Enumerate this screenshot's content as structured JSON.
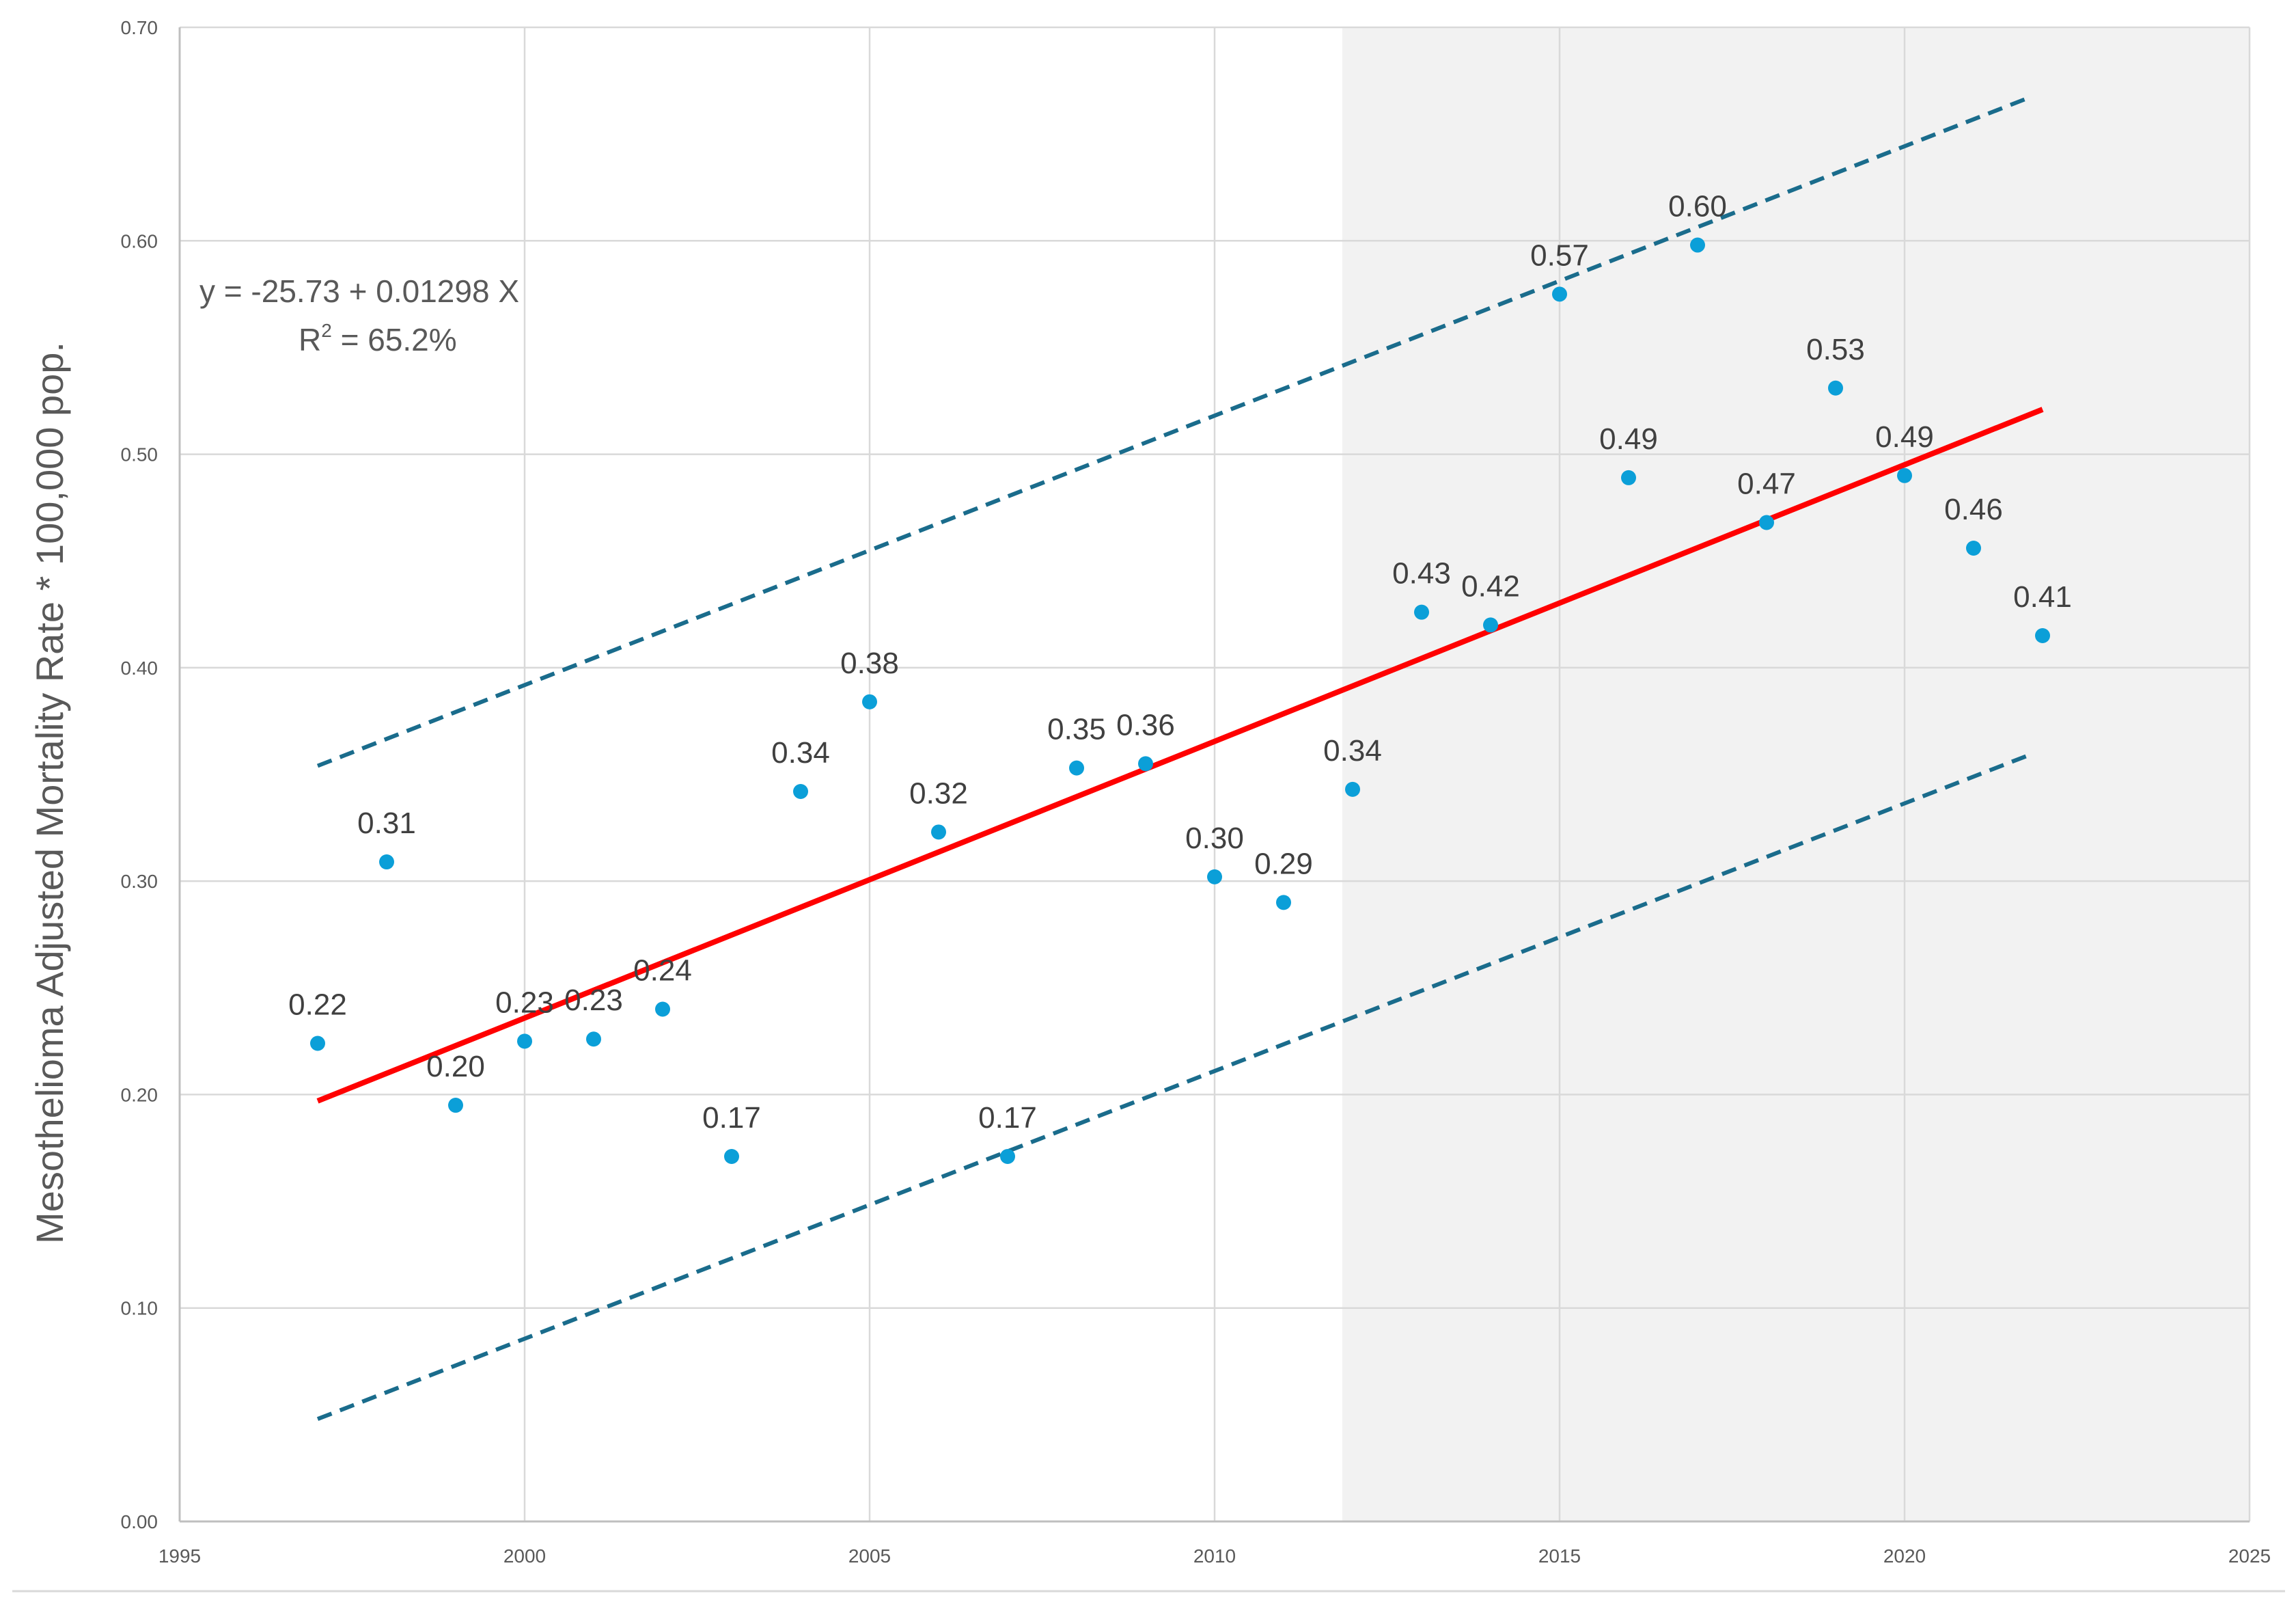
{
  "chart_data": {
    "type": "scatter",
    "title": "",
    "xlabel": "",
    "ylabel": "Mesothelioma Adjusted Mortality Rate * 100,000 pop.",
    "xlim": [
      1995,
      2025
    ],
    "ylim": [
      0.0,
      0.7
    ],
    "x_ticks": [
      "1995",
      "2000",
      "2005",
      "2010",
      "2015",
      "2020",
      "2025"
    ],
    "y_ticks": [
      "0.00",
      "0.10",
      "0.20",
      "0.30",
      "0.40",
      "0.50",
      "0.60",
      "0.70"
    ],
    "grid": true,
    "shaded_region": {
      "x_start": 2011.85,
      "x_end": 2025,
      "color": "#f2f2f2"
    },
    "equation_text": "y = -25.73 + 0.01298 X",
    "r2_text": {
      "prefix": "R",
      "superscript": "2",
      "value": " = 65.2%"
    },
    "series": [
      {
        "name": "Observed",
        "kind": "points",
        "color": "#0b9fd8",
        "points": [
          {
            "x": 1997,
            "y": 0.224,
            "label": "0.22"
          },
          {
            "x": 1998,
            "y": 0.309,
            "label": "0.31"
          },
          {
            "x": 1999,
            "y": 0.195,
            "label": "0.20"
          },
          {
            "x": 2000,
            "y": 0.225,
            "label": "0.23"
          },
          {
            "x": 2001,
            "y": 0.226,
            "label": "0.23"
          },
          {
            "x": 2002,
            "y": 0.24,
            "label": "0.24"
          },
          {
            "x": 2003,
            "y": 0.171,
            "label": "0.17"
          },
          {
            "x": 2004,
            "y": 0.342,
            "label": "0.34"
          },
          {
            "x": 2005,
            "y": 0.384,
            "label": "0.38"
          },
          {
            "x": 2006,
            "y": 0.323,
            "label": "0.32"
          },
          {
            "x": 2007,
            "y": 0.171,
            "label": "0.17"
          },
          {
            "x": 2008,
            "y": 0.353,
            "label": "0.35"
          },
          {
            "x": 2009,
            "y": 0.355,
            "label": "0.36"
          },
          {
            "x": 2010,
            "y": 0.302,
            "label": "0.30"
          },
          {
            "x": 2011,
            "y": 0.29,
            "label": "0.29"
          },
          {
            "x": 2012,
            "y": 0.343,
            "label": "0.34"
          },
          {
            "x": 2013,
            "y": 0.426,
            "label": "0.43"
          },
          {
            "x": 2014,
            "y": 0.42,
            "label": "0.42"
          },
          {
            "x": 2015,
            "y": 0.575,
            "label": "0.57"
          },
          {
            "x": 2016,
            "y": 0.489,
            "label": "0.49"
          },
          {
            "x": 2017,
            "y": 0.598,
            "label": "0.60"
          },
          {
            "x": 2018,
            "y": 0.468,
            "label": "0.47"
          },
          {
            "x": 2019,
            "y": 0.531,
            "label": "0.53"
          },
          {
            "x": 2020,
            "y": 0.49,
            "label": "0.49"
          },
          {
            "x": 2021,
            "y": 0.456,
            "label": "0.46"
          },
          {
            "x": 2022,
            "y": 0.415,
            "label": "0.41"
          }
        ]
      },
      {
        "name": "Fitted line",
        "kind": "line",
        "color": "#ff0000",
        "dash": false,
        "points": [
          {
            "x": 1997,
            "y": 0.197
          },
          {
            "x": 2022,
            "y": 0.521
          }
        ]
      },
      {
        "name": "Upper prediction bound",
        "kind": "line",
        "color": "#1a6c8c",
        "dash": true,
        "points": [
          {
            "x": 1997,
            "y": 0.354
          },
          {
            "x": 2021.8,
            "y": 0.667
          }
        ]
      },
      {
        "name": "Lower prediction bound",
        "kind": "line",
        "color": "#1a6c8c",
        "dash": true,
        "points": [
          {
            "x": 1997,
            "y": 0.048
          },
          {
            "x": 2021.8,
            "y": 0.359
          }
        ]
      }
    ]
  }
}
